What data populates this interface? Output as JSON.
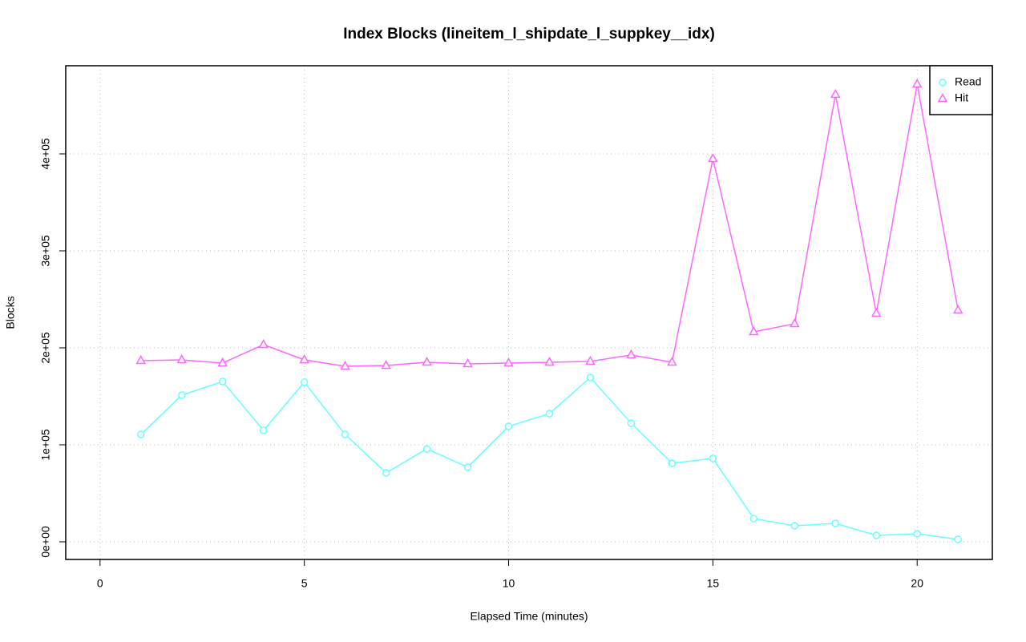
{
  "chart_data": {
    "type": "line",
    "title": "Index Blocks (lineitem_l_shipdate_l_suppkey__idx)",
    "x_label": "Elapsed Time (minutes)",
    "y_label": "Blocks",
    "x": [
      1,
      2,
      3,
      4,
      5,
      6,
      7,
      8,
      9,
      10,
      11,
      12,
      13,
      14,
      15,
      16,
      17,
      18,
      19,
      20,
      21
    ],
    "series": [
      {
        "name": "Read",
        "color": "#66ffff",
        "marker": "circle",
        "values": [
          110700,
          151200,
          165300,
          114900,
          164500,
          110700,
          71100,
          95900,
          76900,
          119000,
          132200,
          169400,
          122300,
          81000,
          86000,
          24000,
          16500,
          19000,
          6600,
          8300,
          2500
        ]
      },
      {
        "name": "Hit",
        "color": "#ff66ff",
        "marker": "triangle",
        "values": [
          186800,
          187600,
          184300,
          203300,
          187600,
          181000,
          181800,
          185100,
          183500,
          184300,
          185100,
          186000,
          192600,
          185100,
          395000,
          216500,
          224800,
          461200,
          235500,
          471900,
          238800
        ]
      }
    ],
    "xlim": [
      -0.84,
      21.84
    ],
    "ylim": [
      -18200,
      490900
    ],
    "xticks": [
      0,
      5,
      10,
      15,
      20
    ],
    "yticks": [
      {
        "value": 0,
        "label": "0e+00"
      },
      {
        "value": 100000,
        "label": "1e+05"
      },
      {
        "value": 200000,
        "label": "2e+05"
      },
      {
        "value": 300000,
        "label": "3e+05"
      },
      {
        "value": 400000,
        "label": "4e+05"
      }
    ],
    "grid": true,
    "legend": "topright"
  }
}
